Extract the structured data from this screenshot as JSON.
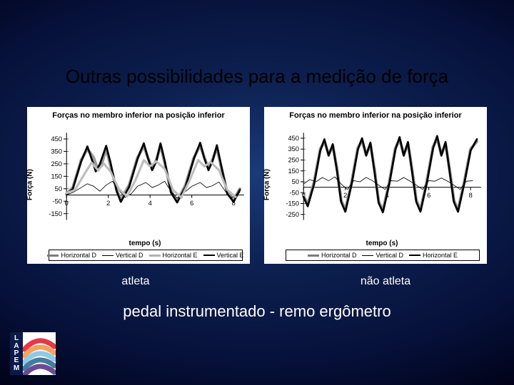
{
  "title": "Outras possibilidades para a medição de força",
  "subtitle": "pedal instrumentado - remo ergômetro",
  "captions": {
    "left": "atleta",
    "right": "não atleta"
  },
  "logo": {
    "letters": [
      "L",
      "A",
      "P",
      "E",
      "M"
    ],
    "arc_colors": [
      "#e63946",
      "#f4a261",
      "#8ecae6",
      "#457b9d",
      "#6a4c93"
    ]
  },
  "charts": [
    {
      "title": "Forças no membro inferior na posição inferior",
      "xlabel": "tempo (s)",
      "ylabel": "Força (N)",
      "ylim": [
        -200,
        500
      ],
      "yticks": [
        -150,
        -50,
        50,
        150,
        250,
        350,
        450
      ],
      "xlim": [
        0,
        8.5
      ],
      "xticks": [
        0,
        2,
        4,
        6,
        8
      ],
      "background": "#ffffff",
      "legend": [
        {
          "label": "Horizontal D",
          "color": "#7a7a7a",
          "width": 3,
          "dash": "0"
        },
        {
          "label": "Vertical D",
          "color": "#000000",
          "width": 1,
          "dash": "0"
        },
        {
          "label": "Horizontal E",
          "color": "#b0b0b0",
          "width": 3,
          "dash": "0"
        },
        {
          "label": "Vertical E",
          "color": "#000000",
          "width": 2.5,
          "dash": "0"
        }
      ],
      "series": [
        {
          "color": "#9a9a9a",
          "width": 4,
          "dash": "0",
          "pts": [
            [
              0,
              10
            ],
            [
              0.3,
              60
            ],
            [
              0.7,
              280
            ],
            [
              1.0,
              370
            ],
            [
              1.3,
              300
            ],
            [
              1.5,
              200
            ],
            [
              1.7,
              260
            ],
            [
              1.9,
              370
            ],
            [
              2.1,
              240
            ],
            [
              2.4,
              40
            ],
            [
              2.6,
              -40
            ],
            [
              3.0,
              80
            ],
            [
              3.4,
              300
            ],
            [
              3.7,
              395
            ],
            [
              3.9,
              300
            ],
            [
              4.1,
              210
            ],
            [
              4.3,
              280
            ],
            [
              4.5,
              400
            ],
            [
              4.7,
              260
            ],
            [
              5.0,
              30
            ],
            [
              5.3,
              -50
            ],
            [
              5.7,
              80
            ],
            [
              6.1,
              300
            ],
            [
              6.4,
              400
            ],
            [
              6.6,
              300
            ],
            [
              6.8,
              210
            ],
            [
              7.0,
              285
            ],
            [
              7.2,
              380
            ],
            [
              7.4,
              230
            ],
            [
              7.7,
              20
            ],
            [
              8.0,
              -40
            ],
            [
              8.3,
              50
            ]
          ]
        },
        {
          "color": "#000000",
          "width": 2.6,
          "dash": "0",
          "pts": [
            [
              0,
              5
            ],
            [
              0.3,
              50
            ],
            [
              0.7,
              270
            ],
            [
              1.0,
              390
            ],
            [
              1.2,
              290
            ],
            [
              1.4,
              190
            ],
            [
              1.6,
              250
            ],
            [
              1.9,
              395
            ],
            [
              2.1,
              265
            ],
            [
              2.4,
              30
            ],
            [
              2.6,
              -55
            ],
            [
              3.0,
              65
            ],
            [
              3.4,
              290
            ],
            [
              3.7,
              415
            ],
            [
              3.9,
              295
            ],
            [
              4.1,
              200
            ],
            [
              4.3,
              270
            ],
            [
              4.5,
              415
            ],
            [
              4.7,
              275
            ],
            [
              5.0,
              20
            ],
            [
              5.3,
              -60
            ],
            [
              5.7,
              65
            ],
            [
              6.1,
              290
            ],
            [
              6.4,
              420
            ],
            [
              6.6,
              295
            ],
            [
              6.8,
              200
            ],
            [
              7.0,
              275
            ],
            [
              7.2,
              400
            ],
            [
              7.4,
              245
            ],
            [
              7.7,
              10
            ],
            [
              8.0,
              -55
            ],
            [
              8.3,
              40
            ]
          ]
        },
        {
          "color": "#000000",
          "width": 0.8,
          "dash": "0",
          "pts": [
            [
              0,
              0
            ],
            [
              0.3,
              20
            ],
            [
              0.7,
              60
            ],
            [
              1.0,
              90
            ],
            [
              1.3,
              70
            ],
            [
              1.6,
              30
            ],
            [
              1.9,
              80
            ],
            [
              2.2,
              110
            ],
            [
              2.5,
              40
            ],
            [
              2.8,
              -20
            ],
            [
              3.1,
              10
            ],
            [
              3.4,
              70
            ],
            [
              3.8,
              100
            ],
            [
              4.1,
              60
            ],
            [
              4.4,
              80
            ],
            [
              4.7,
              110
            ],
            [
              5.0,
              30
            ],
            [
              5.3,
              -25
            ],
            [
              5.6,
              15
            ],
            [
              6.0,
              70
            ],
            [
              6.4,
              100
            ],
            [
              6.7,
              60
            ],
            [
              7.0,
              75
            ],
            [
              7.3,
              105
            ],
            [
              7.6,
              30
            ],
            [
              7.9,
              -20
            ],
            [
              8.3,
              20
            ]
          ]
        },
        {
          "color": "#bdbdbd",
          "width": 3,
          "dash": "0",
          "pts": [
            [
              0,
              15
            ],
            [
              0.4,
              40
            ],
            [
              0.9,
              180
            ],
            [
              1.2,
              260
            ],
            [
              1.5,
              200
            ],
            [
              1.8,
              250
            ],
            [
              2.1,
              190
            ],
            [
              2.5,
              50
            ],
            [
              2.9,
              -10
            ],
            [
              3.3,
              120
            ],
            [
              3.7,
              280
            ],
            [
              4.0,
              230
            ],
            [
              4.3,
              270
            ],
            [
              4.7,
              210
            ],
            [
              5.1,
              40
            ],
            [
              5.5,
              -20
            ],
            [
              5.9,
              120
            ],
            [
              6.3,
              280
            ],
            [
              6.6,
              230
            ],
            [
              6.9,
              265
            ],
            [
              7.3,
              200
            ],
            [
              7.7,
              40
            ],
            [
              8.1,
              -15
            ]
          ]
        }
      ]
    },
    {
      "title": "Forças no membro inferior na posição inferior",
      "xlabel": "tempo (s)",
      "ylabel": "Força (N)",
      "ylim": [
        -300,
        500
      ],
      "yticks": [
        -250,
        -150,
        -50,
        50,
        150,
        250,
        350,
        450
      ],
      "xlim": [
        0,
        8.5
      ],
      "xticks": [
        0,
        2,
        4,
        6,
        8
      ],
      "background": "#ffffff",
      "legend": [
        {
          "label": "Horizontal D",
          "color": "#7a7a7a",
          "width": 3,
          "dash": "0"
        },
        {
          "label": "Vertical D",
          "color": "#000000",
          "width": 1,
          "dash": "0"
        },
        {
          "label": "Horizontal E",
          "color": "#000000",
          "width": 2.5,
          "dash": "0"
        }
      ],
      "series": [
        {
          "color": "#9a9a9a",
          "width": 4,
          "dash": "0",
          "pts": [
            [
              0,
              -80
            ],
            [
              0.2,
              -160
            ],
            [
              0.5,
              40
            ],
            [
              0.8,
              350
            ],
            [
              1.0,
              420
            ],
            [
              1.2,
              300
            ],
            [
              1.4,
              380
            ],
            [
              1.6,
              170
            ],
            [
              1.8,
              -120
            ],
            [
              2.0,
              -210
            ],
            [
              2.3,
              40
            ],
            [
              2.6,
              360
            ],
            [
              2.8,
              430
            ],
            [
              3.0,
              300
            ],
            [
              3.2,
              395
            ],
            [
              3.4,
              160
            ],
            [
              3.6,
              -130
            ],
            [
              3.8,
              -215
            ],
            [
              4.1,
              40
            ],
            [
              4.4,
              360
            ],
            [
              4.6,
              440
            ],
            [
              4.8,
              300
            ],
            [
              5.0,
              400
            ],
            [
              5.2,
              160
            ],
            [
              5.4,
              -120
            ],
            [
              5.6,
              -210
            ],
            [
              5.9,
              50
            ],
            [
              6.2,
              370
            ],
            [
              6.4,
              450
            ],
            [
              6.6,
              300
            ],
            [
              6.8,
              400
            ],
            [
              7.0,
              160
            ],
            [
              7.2,
              -120
            ],
            [
              7.4,
              -210
            ],
            [
              7.7,
              50
            ],
            [
              8.0,
              350
            ],
            [
              8.3,
              420
            ]
          ]
        },
        {
          "color": "#000000",
          "width": 2.6,
          "dash": "0",
          "pts": [
            [
              0,
              -90
            ],
            [
              0.2,
              -175
            ],
            [
              0.5,
              25
            ],
            [
              0.8,
              335
            ],
            [
              1.0,
              440
            ],
            [
              1.2,
              290
            ],
            [
              1.4,
              395
            ],
            [
              1.6,
              150
            ],
            [
              1.8,
              -135
            ],
            [
              2.0,
              -225
            ],
            [
              2.3,
              25
            ],
            [
              2.6,
              345
            ],
            [
              2.8,
              450
            ],
            [
              3.0,
              290
            ],
            [
              3.2,
              410
            ],
            [
              3.4,
              140
            ],
            [
              3.6,
              -145
            ],
            [
              3.8,
              -230
            ],
            [
              4.1,
              25
            ],
            [
              4.4,
              345
            ],
            [
              4.6,
              460
            ],
            [
              4.8,
              290
            ],
            [
              5.0,
              415
            ],
            [
              5.2,
              140
            ],
            [
              5.4,
              -135
            ],
            [
              5.6,
              -225
            ],
            [
              5.9,
              35
            ],
            [
              6.2,
              355
            ],
            [
              6.4,
              470
            ],
            [
              6.6,
              290
            ],
            [
              6.8,
              415
            ],
            [
              7.0,
              140
            ],
            [
              7.2,
              -135
            ],
            [
              7.4,
              -225
            ],
            [
              7.7,
              35
            ],
            [
              8.0,
              335
            ],
            [
              8.3,
              440
            ]
          ]
        },
        {
          "color": "#000000",
          "width": 0.8,
          "dash": "0",
          "pts": [
            [
              0,
              30
            ],
            [
              0.3,
              70
            ],
            [
              0.6,
              50
            ],
            [
              0.9,
              90
            ],
            [
              1.2,
              60
            ],
            [
              1.5,
              95
            ],
            [
              1.8,
              30
            ],
            [
              2.1,
              -20
            ],
            [
              2.4,
              60
            ],
            [
              2.7,
              50
            ],
            [
              3.0,
              90
            ],
            [
              3.3,
              60
            ],
            [
              3.6,
              20
            ],
            [
              3.9,
              -20
            ],
            [
              4.2,
              60
            ],
            [
              4.5,
              55
            ],
            [
              4.8,
              90
            ],
            [
              5.1,
              55
            ],
            [
              5.4,
              20
            ],
            [
              5.7,
              -20
            ],
            [
              6.0,
              60
            ],
            [
              6.3,
              55
            ],
            [
              6.6,
              85
            ],
            [
              6.9,
              55
            ],
            [
              7.2,
              20
            ],
            [
              7.5,
              -20
            ],
            [
              7.8,
              55
            ],
            [
              8.1,
              60
            ]
          ]
        }
      ]
    }
  ]
}
